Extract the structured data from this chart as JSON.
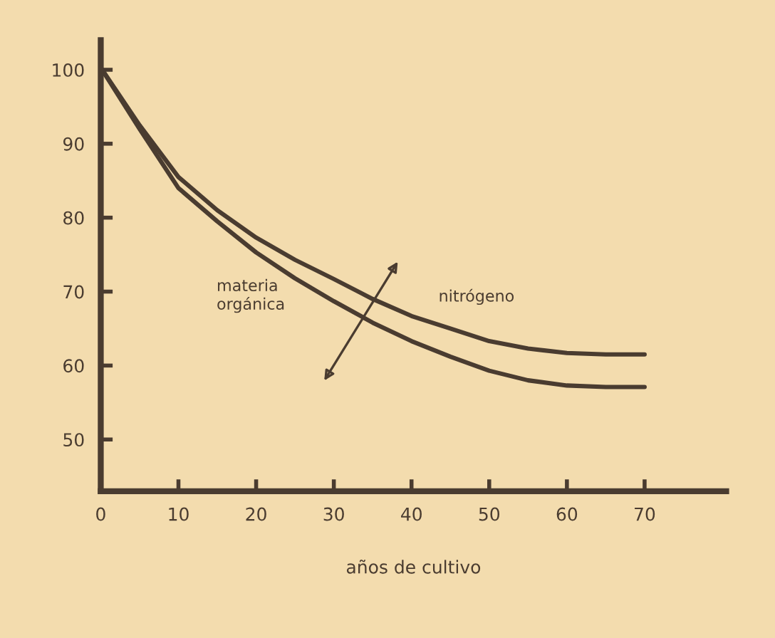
{
  "chart_data": {
    "type": "line",
    "xlabel": "años de cultivo",
    "x": [
      0,
      5,
      10,
      15,
      20,
      25,
      30,
      35,
      40,
      45,
      50,
      55,
      60,
      65,
      70
    ],
    "series": [
      {
        "name": "nitrógeno",
        "color": "#4a3c30",
        "values": [
          100.3,
          92.5,
          85.5,
          81,
          77.3,
          74.3,
          71.7,
          69,
          66.7,
          65,
          63.3,
          62.3,
          61.7,
          61.5,
          61.5
        ]
      },
      {
        "name": "materia orgánica",
        "color": "#4a3c30",
        "values": [
          100.3,
          92,
          84,
          79.5,
          75.3,
          71.8,
          68.7,
          65.8,
          63.3,
          61.2,
          59.3,
          58,
          57.3,
          57.1,
          57.1
        ]
      }
    ],
    "xlim": [
      0,
      80.5
    ],
    "ylim": [
      43,
      104
    ],
    "xticks": [
      0,
      10,
      20,
      30,
      40,
      50,
      60,
      70
    ],
    "yticks": [
      50,
      60,
      70,
      80,
      90,
      100
    ],
    "grid": false,
    "legend": false,
    "marker": "none",
    "line_style": "solid"
  }
}
